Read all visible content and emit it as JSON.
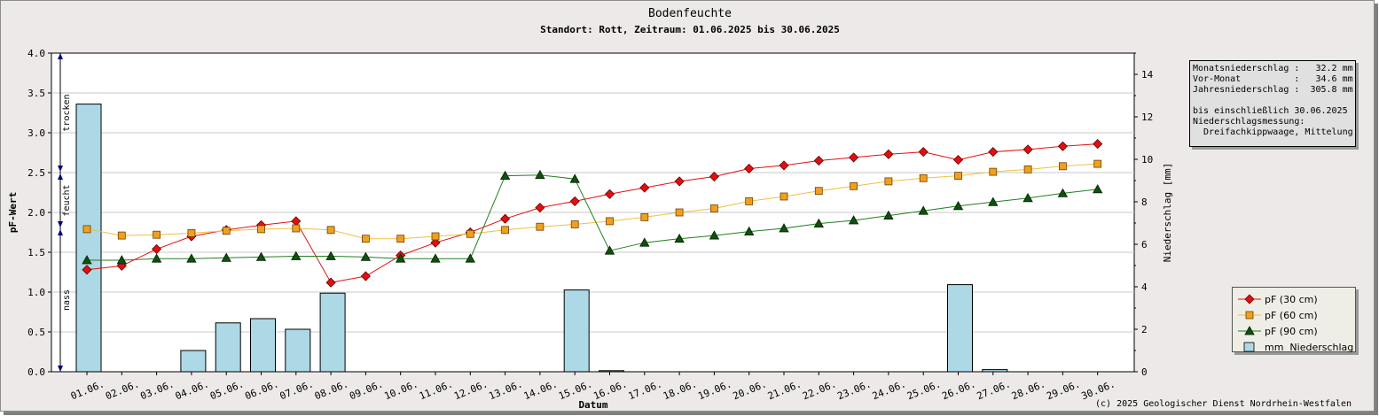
{
  "chart_data": {
    "type": "line",
    "title": "Bodenfeuchte",
    "subtitle": "Standort: Rott, Zeitraum: 01.06.2025 bis 30.06.2025",
    "xlabel": "Datum",
    "ylabel": "pF-Wert",
    "y2label": "Niederschlag [mm]",
    "ylim": [
      0,
      4.0
    ],
    "y2lim": [
      0,
      15
    ],
    "yticks": [
      "0.0",
      "0.5",
      "1.0",
      "1.5",
      "2.0",
      "2.5",
      "3.0",
      "3.5",
      "4.0"
    ],
    "y2ticks": [
      "0",
      "2",
      "4",
      "6",
      "8",
      "10",
      "12",
      "14"
    ],
    "grid": true,
    "legend_position": "right",
    "categories": [
      "01.06.",
      "02.06.",
      "03.06.",
      "04.06.",
      "05.06.",
      "06.06.",
      "07.06.",
      "08.06.",
      "09.06.",
      "10.06.",
      "11.06.",
      "12.06.",
      "13.06.",
      "14.06.",
      "15.06.",
      "16.06.",
      "17.06.",
      "18.06.",
      "19.06.",
      "20.06.",
      "21.06.",
      "22.06.",
      "23.06.",
      "24.06.",
      "25.06.",
      "26.06.",
      "27.06.",
      "28.06.",
      "29.06.",
      "30.06."
    ],
    "series": [
      {
        "name": "pF (30 cm)",
        "type": "line",
        "marker": "diamond",
        "color": "#e01010",
        "values": [
          1.28,
          1.33,
          1.54,
          1.7,
          1.78,
          1.84,
          1.89,
          1.12,
          1.2,
          1.46,
          1.62,
          1.75,
          1.92,
          2.06,
          2.14,
          2.23,
          2.31,
          2.39,
          2.45,
          2.55,
          2.59,
          2.65,
          2.69,
          2.73,
          2.76,
          2.66,
          2.76,
          2.79,
          2.83,
          2.86
        ]
      },
      {
        "name": "pF (60 cm)",
        "type": "line",
        "marker": "square",
        "color": "#f0a020",
        "values": [
          1.79,
          1.71,
          1.72,
          1.74,
          1.77,
          1.79,
          1.8,
          1.78,
          1.67,
          1.67,
          1.7,
          1.73,
          1.78,
          1.82,
          1.85,
          1.89,
          1.94,
          2.0,
          2.05,
          2.14,
          2.2,
          2.27,
          2.33,
          2.39,
          2.43,
          2.46,
          2.51,
          2.54,
          2.58,
          2.61
        ]
      },
      {
        "name": "pF (90 cm)",
        "type": "line",
        "marker": "triangle",
        "color": "#105010",
        "values": [
          1.4,
          1.4,
          1.42,
          1.42,
          1.43,
          1.44,
          1.45,
          1.45,
          1.44,
          1.42,
          1.42,
          1.42,
          2.46,
          2.47,
          2.42,
          1.52,
          1.62,
          1.67,
          1.71,
          1.76,
          1.8,
          1.86,
          1.9,
          1.96,
          2.02,
          2.08,
          2.13,
          2.18,
          2.24,
          2.29
        ]
      },
      {
        "name": "mm  Niederschlag",
        "type": "bar",
        "axis": "y2",
        "color": "#add8e6",
        "values": [
          12.6,
          0,
          0,
          1.0,
          2.3,
          2.5,
          2.0,
          3.7,
          0,
          0,
          0,
          0,
          0,
          0,
          3.85,
          0.05,
          0,
          0,
          0,
          0,
          0,
          0,
          0,
          0,
          0,
          4.1,
          0.1,
          0,
          0,
          0
        ]
      }
    ],
    "zones": [
      {
        "label": "trocken",
        "from": 2.5,
        "to": 4.0
      },
      {
        "label": "feucht",
        "from": 1.8,
        "to": 2.5
      },
      {
        "label": "nass",
        "from": 0.0,
        "to": 1.8
      }
    ],
    "footer": "(c) 2025 Geologischer Dienst Nordrhein-Westfalen"
  },
  "infobox": [
    "Monatsniederschlag :   32.2 mm",
    "Vor-Monat          :   34.6 mm",
    "Jahresniederschlag :  305.8 mm",
    "",
    "bis einschließlich 30.06.2025",
    "Niederschlagsmessung:",
    "  Dreifachkippwaage, Mittelung"
  ]
}
